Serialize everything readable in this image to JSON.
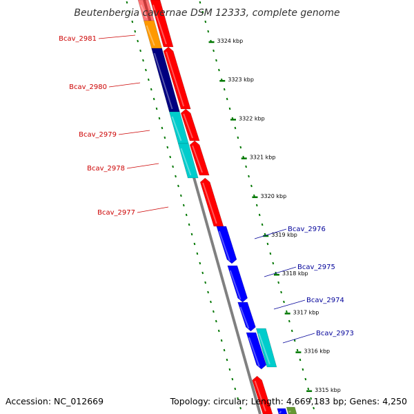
{
  "title": "Beutenbergia cavernae DSM 12333, complete genome",
  "accession": "Accession: NC_012669",
  "topology": "Topology: circular; Length: 4,669,183 bp; Genes: 4,250",
  "colors": {
    "forward_gene": "#ff0000",
    "reverse_gene": "#0000ff",
    "backbone": "#808080",
    "ticks": "#007700",
    "forward_label": "#cc0000",
    "reverse_label": "#000099",
    "cyan": "#00cccc",
    "navy": "#000080",
    "orange": "#ff9900",
    "olive": "#669933"
  },
  "scale_ticks": [
    {
      "label": "3324 kbp"
    },
    {
      "label": "3323 kbp"
    },
    {
      "label": "3322 kbp"
    },
    {
      "label": "3321 kbp"
    },
    {
      "label": "3320 kbp"
    },
    {
      "label": "3319 kbp"
    },
    {
      "label": "3318 kbp"
    },
    {
      "label": "3317 kbp"
    },
    {
      "label": "3316 kbp"
    },
    {
      "label": "3315 kbp"
    }
  ],
  "forward_genes": [
    {
      "label": "Bcav_2981"
    },
    {
      "label": "Bcav_2980"
    },
    {
      "label": "Bcav_2979"
    },
    {
      "label": "Bcav_2978"
    },
    {
      "label": "Bcav_2977"
    }
  ],
  "reverse_genes": [
    {
      "label": "Bcav_2976"
    },
    {
      "label": "Bcav_2975"
    },
    {
      "label": "Bcav_2974"
    },
    {
      "label": "Bcav_2973"
    }
  ]
}
